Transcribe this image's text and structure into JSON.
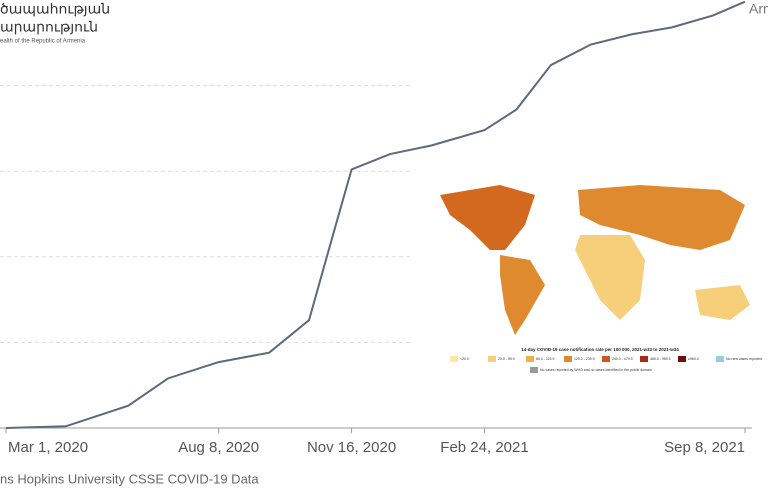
{
  "chart_data": {
    "type": "line",
    "logo": {
      "line1": "ծապահության",
      "line2": "արարություն",
      "line3": "ealth of the Republic of Armenia"
    },
    "source": "ns Hopkins University CSSE COVID-19 Data",
    "x": [
      "2020-03-01",
      "2020-04-15",
      "2020-06-01",
      "2020-07-01",
      "2020-08-08",
      "2020-09-15",
      "2020-10-15",
      "2020-11-01",
      "2020-11-16",
      "2020-12-15",
      "2021-01-15",
      "2021-02-24",
      "2021-03-20",
      "2021-04-15",
      "2021-05-15",
      "2021-06-15",
      "2021-07-15",
      "2021-08-15",
      "2021-09-08"
    ],
    "series": [
      {
        "name": "Armenia",
        "color": "#5b6b7d",
        "values": [
          0,
          1000,
          13000,
          29000,
          38500,
          44000,
          63000,
          110000,
          151000,
          160000,
          165000,
          174000,
          186000,
          212000,
          224000,
          230000,
          234000,
          241000,
          249000
        ]
      }
    ],
    "xlim": [
      "2020-02-27",
      "2021-09-08"
    ],
    "xticks": [
      {
        "value": "2020-03-01",
        "label": "Mar 1, 2020"
      },
      {
        "value": "2020-08-08",
        "label": "Aug 8, 2020"
      },
      {
        "value": "2020-11-16",
        "label": "Nov 16, 2020"
      },
      {
        "value": "2021-02-24",
        "label": "Feb 24, 2021"
      },
      {
        "value": "2021-09-08",
        "label": "Sep 8, 2021"
      }
    ],
    "ylim": [
      0,
      250000
    ],
    "yticks": [
      50000,
      100000,
      150000,
      200000
    ],
    "grid": true,
    "inset_map": {
      "title": "14-day COVID-19 case notification rate per 100 000, 2021-w33 to 2021-w34",
      "legend": [
        {
          "label": "<20.0",
          "color": "#fbe7a8"
        },
        {
          "label": "20.0 - 59.9",
          "color": "#f7cf7a"
        },
        {
          "label": "60.0 - 119.9",
          "color": "#f0b050"
        },
        {
          "label": "120.0 - 239.9",
          "color": "#e08a30"
        },
        {
          "label": "240.0 - 479.9",
          "color": "#c85a1e"
        },
        {
          "label": "480.0 - 959.9",
          "color": "#a8281a"
        },
        {
          "label": "≥960.0",
          "color": "#6e0f0f"
        },
        {
          "label": "No new cases reported",
          "color": "#8fd3d8"
        },
        {
          "label": "No cases reported by WHO and no cases identified in the public domain",
          "color": "#9a9a9a"
        }
      ]
    }
  }
}
